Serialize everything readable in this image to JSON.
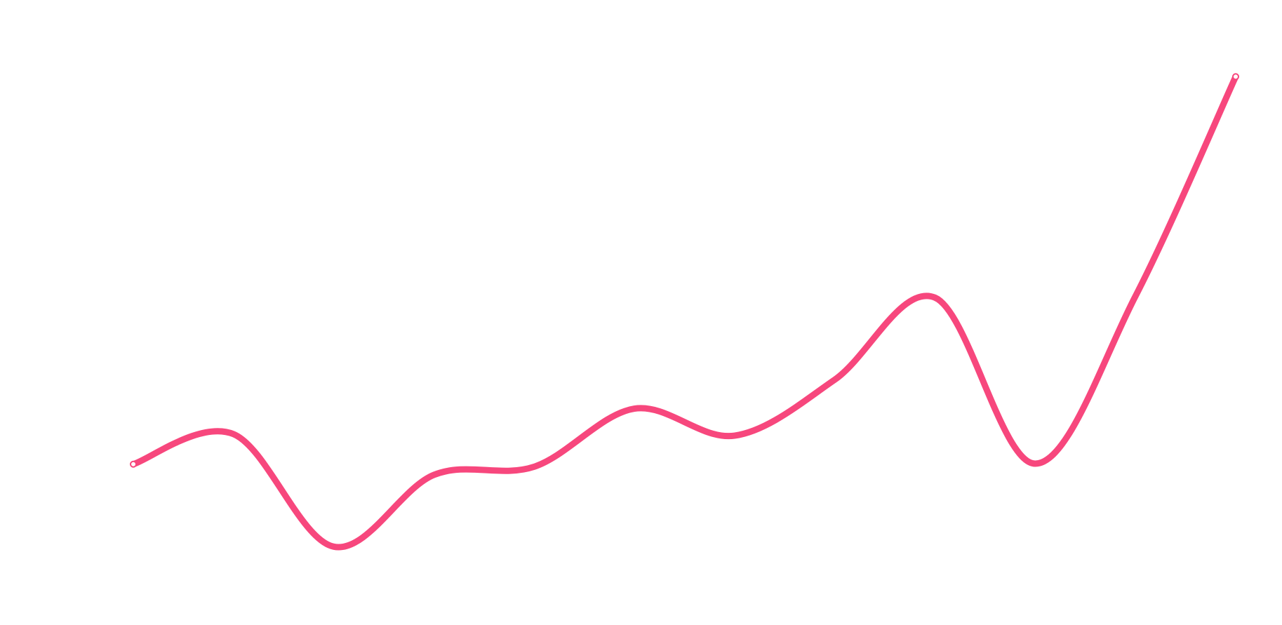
{
  "chart_data": {
    "type": "line",
    "categories": [
      null,
      null,
      null,
      null,
      null,
      null,
      null,
      null,
      null,
      null,
      null,
      null
    ],
    "series": [
      {
        "color": "#f7477d",
        "values": [
          21.8,
          27.7,
          5.6,
          19.7,
          21.3,
          32.7,
          27.4,
          38.4,
          54.5,
          21.9,
          54.8,
          97.9
        ]
      }
    ],
    "ylim": [
      0,
      100
    ]
  }
}
